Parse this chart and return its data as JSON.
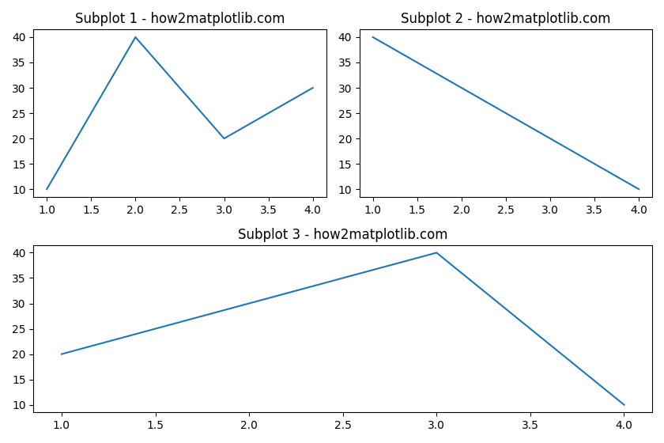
{
  "subplot1": {
    "title": "Subplot 1 - how2matplotlib.com",
    "x": [
      1,
      2,
      3,
      4
    ],
    "y": [
      10,
      40,
      20,
      30
    ]
  },
  "subplot2": {
    "title": "Subplot 2 - how2matplotlib.com",
    "x": [
      1,
      4
    ],
    "y": [
      40,
      10
    ]
  },
  "subplot3": {
    "title": "Subplot 3 - how2matplotlib.com",
    "x": [
      1,
      3,
      4
    ],
    "y": [
      20,
      40,
      10
    ]
  },
  "line_color": "#1f77b4",
  "bg_color": "#ffffff",
  "figsize": [
    8.4,
    5.6
  ],
  "dpi": 100
}
